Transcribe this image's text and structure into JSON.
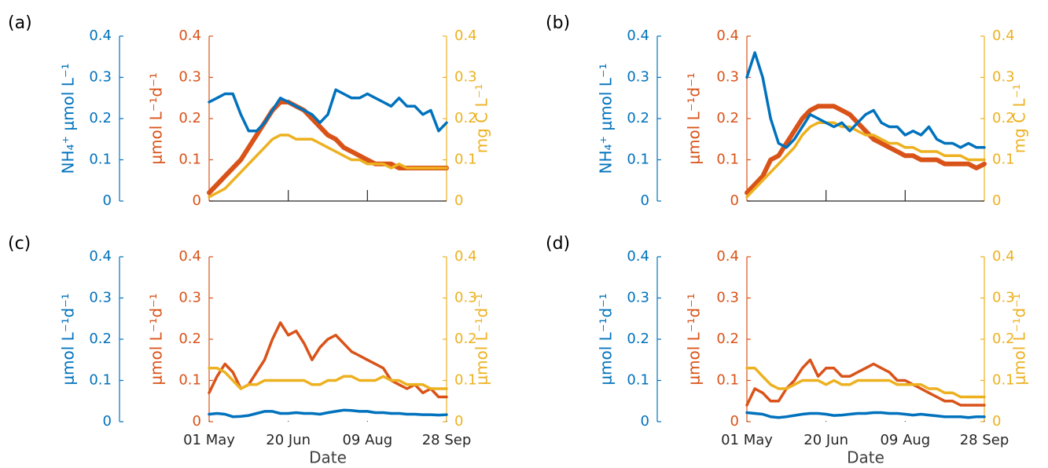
{
  "chart_data": [
    {
      "type": "line",
      "panel": "(a)",
      "xlim": [
        0,
        150
      ],
      "xticks": [
        50,
        100
      ],
      "xtick_labels": false,
      "x": [
        0,
        5,
        10,
        15,
        20,
        25,
        30,
        35,
        40,
        45,
        50,
        55,
        60,
        65,
        70,
        75,
        80,
        85,
        90,
        95,
        100,
        105,
        110,
        115,
        120,
        125,
        130,
        135,
        140,
        145,
        150
      ],
      "ylabel": "NH₄⁺ μmol L⁻¹",
      "ylim": [
        0,
        0.4
      ],
      "yticks": [
        0,
        0.1,
        0.2,
        0.3,
        0.4
      ],
      "y2label": "μmol L⁻¹d⁻¹",
      "y2lim": [
        0,
        0.4
      ],
      "y2ticks": [
        0,
        0.1,
        0.2,
        0.3,
        0.4
      ],
      "y3label": "mg C L⁻¹",
      "y3lim": [
        0,
        0.4
      ],
      "y3ticks": [
        0,
        0.1,
        0.2,
        0.3,
        0.4
      ],
      "series": [
        {
          "color": "#0072bd",
          "axis": "y",
          "values": [
            0.24,
            0.25,
            0.26,
            0.26,
            0.21,
            0.17,
            0.17,
            0.19,
            0.22,
            0.25,
            0.24,
            0.23,
            0.22,
            0.21,
            0.19,
            0.21,
            0.27,
            0.26,
            0.25,
            0.25,
            0.26,
            0.25,
            0.24,
            0.23,
            0.25,
            0.23,
            0.23,
            0.21,
            0.22,
            0.17,
            0.19
          ]
        },
        {
          "color": "#d95319",
          "axis": "y2",
          "values": [
            0.02,
            0.04,
            0.06,
            0.08,
            0.1,
            0.13,
            0.16,
            0.19,
            0.22,
            0.24,
            0.24,
            0.23,
            0.22,
            0.2,
            0.18,
            0.16,
            0.15,
            0.13,
            0.12,
            0.11,
            0.1,
            0.09,
            0.09,
            0.09,
            0.08,
            0.08,
            0.08,
            0.08,
            0.08,
            0.08,
            0.08
          ]
        },
        {
          "color": "#edb120",
          "axis": "y3",
          "values": [
            0.01,
            0.02,
            0.03,
            0.05,
            0.07,
            0.09,
            0.11,
            0.13,
            0.15,
            0.16,
            0.16,
            0.15,
            0.15,
            0.15,
            0.14,
            0.13,
            0.12,
            0.11,
            0.1,
            0.1,
            0.09,
            0.09,
            0.09,
            0.08,
            0.09,
            0.08,
            0.08,
            0.08,
            0.08,
            0.08,
            0.08
          ]
        }
      ]
    },
    {
      "type": "line",
      "panel": "(b)",
      "xlim": [
        0,
        150
      ],
      "xticks": [
        50,
        100
      ],
      "xtick_labels": false,
      "x": [
        0,
        5,
        10,
        15,
        20,
        25,
        30,
        35,
        40,
        45,
        50,
        55,
        60,
        65,
        70,
        75,
        80,
        85,
        90,
        95,
        100,
        105,
        110,
        115,
        120,
        125,
        130,
        135,
        140,
        145,
        150
      ],
      "ylabel": "NH₄⁺ μmol L⁻¹",
      "ylim": [
        0,
        0.4
      ],
      "yticks": [
        0,
        0.1,
        0.2,
        0.3,
        0.4
      ],
      "y2label": "μmol L⁻¹d⁻¹",
      "y2lim": [
        0,
        0.4
      ],
      "y2ticks": [
        0,
        0.1,
        0.2,
        0.3,
        0.4
      ],
      "y3label": "mg C L⁻¹",
      "y3lim": [
        0,
        0.4
      ],
      "y3ticks": [
        0,
        0.1,
        0.2,
        0.3,
        0.4
      ],
      "series": [
        {
          "color": "#0072bd",
          "axis": "y",
          "values": [
            0.3,
            0.36,
            0.3,
            0.2,
            0.14,
            0.13,
            0.15,
            0.18,
            0.21,
            0.2,
            0.19,
            0.18,
            0.19,
            0.17,
            0.19,
            0.21,
            0.22,
            0.19,
            0.18,
            0.18,
            0.16,
            0.17,
            0.16,
            0.18,
            0.15,
            0.14,
            0.14,
            0.13,
            0.14,
            0.13,
            0.13
          ]
        },
        {
          "color": "#d95319",
          "axis": "y2",
          "values": [
            0.02,
            0.04,
            0.06,
            0.1,
            0.11,
            0.14,
            0.17,
            0.2,
            0.22,
            0.23,
            0.23,
            0.23,
            0.22,
            0.21,
            0.19,
            0.17,
            0.15,
            0.14,
            0.13,
            0.12,
            0.11,
            0.11,
            0.1,
            0.1,
            0.1,
            0.09,
            0.09,
            0.09,
            0.09,
            0.08,
            0.09
          ]
        },
        {
          "color": "#edb120",
          "axis": "y3",
          "values": [
            0.01,
            0.03,
            0.05,
            0.07,
            0.09,
            0.11,
            0.13,
            0.16,
            0.18,
            0.19,
            0.19,
            0.19,
            0.18,
            0.18,
            0.17,
            0.16,
            0.16,
            0.15,
            0.14,
            0.14,
            0.13,
            0.13,
            0.12,
            0.12,
            0.12,
            0.11,
            0.11,
            0.11,
            0.1,
            0.1,
            0.1
          ]
        }
      ]
    },
    {
      "type": "line",
      "panel": "(c)",
      "xlim": [
        0,
        150
      ],
      "xlabel": "Date",
      "xticks": [
        {
          "value": 0,
          "label": "01 May"
        },
        {
          "value": 50,
          "label": "20 Jun"
        },
        {
          "value": 100,
          "label": "09 Aug"
        },
        {
          "value": 150,
          "label": "28 Sep"
        }
      ],
      "x": [
        0,
        5,
        10,
        15,
        20,
        25,
        30,
        35,
        40,
        45,
        50,
        55,
        60,
        65,
        70,
        75,
        80,
        85,
        90,
        95,
        100,
        105,
        110,
        115,
        120,
        125,
        130,
        135,
        140,
        145,
        150
      ],
      "ylabel": "μmol L⁻¹d⁻¹",
      "ylim": [
        0,
        0.4
      ],
      "yticks": [
        0,
        0.1,
        0.2,
        0.3,
        0.4
      ],
      "y2label": "μmol L⁻¹d⁻¹",
      "y2lim": [
        0,
        0.4
      ],
      "y2ticks": [
        0,
        0.1,
        0.2,
        0.3,
        0.4
      ],
      "y3label": "μmol L⁻¹d⁻¹",
      "y3lim": [
        0,
        0.4
      ],
      "y3ticks": [
        0,
        0.1,
        0.2,
        0.3,
        0.4
      ],
      "series": [
        {
          "color": "#0072bd",
          "axis": "y",
          "values": [
            0.018,
            0.02,
            0.018,
            0.012,
            0.013,
            0.015,
            0.02,
            0.025,
            0.025,
            0.02,
            0.02,
            0.022,
            0.02,
            0.02,
            0.018,
            0.022,
            0.025,
            0.028,
            0.027,
            0.025,
            0.025,
            0.022,
            0.022,
            0.02,
            0.02,
            0.018,
            0.018,
            0.017,
            0.017,
            0.016,
            0.017
          ]
        },
        {
          "color": "#d95319",
          "axis": "y2",
          "values": [
            0.07,
            0.11,
            0.14,
            0.12,
            0.08,
            0.09,
            0.12,
            0.15,
            0.2,
            0.24,
            0.21,
            0.22,
            0.19,
            0.15,
            0.18,
            0.2,
            0.21,
            0.19,
            0.17,
            0.16,
            0.15,
            0.14,
            0.13,
            0.1,
            0.09,
            0.08,
            0.09,
            0.07,
            0.08,
            0.06,
            0.06
          ]
        },
        {
          "color": "#edb120",
          "axis": "y3",
          "values": [
            0.13,
            0.13,
            0.12,
            0.1,
            0.08,
            0.09,
            0.09,
            0.1,
            0.1,
            0.1,
            0.1,
            0.1,
            0.1,
            0.09,
            0.09,
            0.1,
            0.1,
            0.11,
            0.11,
            0.1,
            0.1,
            0.1,
            0.11,
            0.1,
            0.1,
            0.09,
            0.09,
            0.09,
            0.08,
            0.08,
            0.08
          ]
        }
      ]
    },
    {
      "type": "line",
      "panel": "(d)",
      "xlim": [
        0,
        150
      ],
      "xlabel": "Date",
      "xticks": [
        {
          "value": 0,
          "label": "01 May"
        },
        {
          "value": 50,
          "label": "20 Jun"
        },
        {
          "value": 100,
          "label": "09 Aug"
        },
        {
          "value": 150,
          "label": "28 Sep"
        }
      ],
      "x": [
        0,
        5,
        10,
        15,
        20,
        25,
        30,
        35,
        40,
        45,
        50,
        55,
        60,
        65,
        70,
        75,
        80,
        85,
        90,
        95,
        100,
        105,
        110,
        115,
        120,
        125,
        130,
        135,
        140,
        145,
        150
      ],
      "ylabel": "μmol L⁻¹d⁻¹",
      "ylim": [
        0,
        0.4
      ],
      "yticks": [
        0,
        0.1,
        0.2,
        0.3,
        0.4
      ],
      "y2label": "μmol L⁻¹d⁻¹",
      "y2lim": [
        0,
        0.4
      ],
      "y2ticks": [
        0,
        0.1,
        0.2,
        0.3,
        0.4
      ],
      "y3label": "μmol L⁻¹d⁻¹",
      "y3lim": [
        0,
        0.4
      ],
      "y3ticks": [
        0,
        0.1,
        0.2,
        0.3,
        0.4
      ],
      "series": [
        {
          "color": "#0072bd",
          "axis": "y",
          "values": [
            0.022,
            0.02,
            0.018,
            0.012,
            0.01,
            0.012,
            0.015,
            0.018,
            0.02,
            0.02,
            0.018,
            0.015,
            0.016,
            0.018,
            0.02,
            0.02,
            0.022,
            0.022,
            0.02,
            0.02,
            0.018,
            0.016,
            0.018,
            0.016,
            0.014,
            0.012,
            0.012,
            0.012,
            0.01,
            0.012,
            0.012
          ]
        },
        {
          "color": "#d95319",
          "axis": "y2",
          "values": [
            0.04,
            0.08,
            0.07,
            0.05,
            0.05,
            0.08,
            0.1,
            0.13,
            0.15,
            0.11,
            0.13,
            0.13,
            0.11,
            0.11,
            0.12,
            0.13,
            0.14,
            0.13,
            0.12,
            0.1,
            0.1,
            0.09,
            0.08,
            0.07,
            0.06,
            0.05,
            0.05,
            0.04,
            0.04,
            0.04,
            0.04
          ]
        },
        {
          "color": "#edb120",
          "axis": "y3",
          "values": [
            0.13,
            0.13,
            0.11,
            0.09,
            0.08,
            0.08,
            0.09,
            0.1,
            0.1,
            0.1,
            0.09,
            0.1,
            0.09,
            0.09,
            0.1,
            0.1,
            0.1,
            0.1,
            0.1,
            0.09,
            0.09,
            0.09,
            0.09,
            0.08,
            0.08,
            0.07,
            0.07,
            0.06,
            0.06,
            0.06,
            0.06
          ]
        }
      ]
    }
  ]
}
